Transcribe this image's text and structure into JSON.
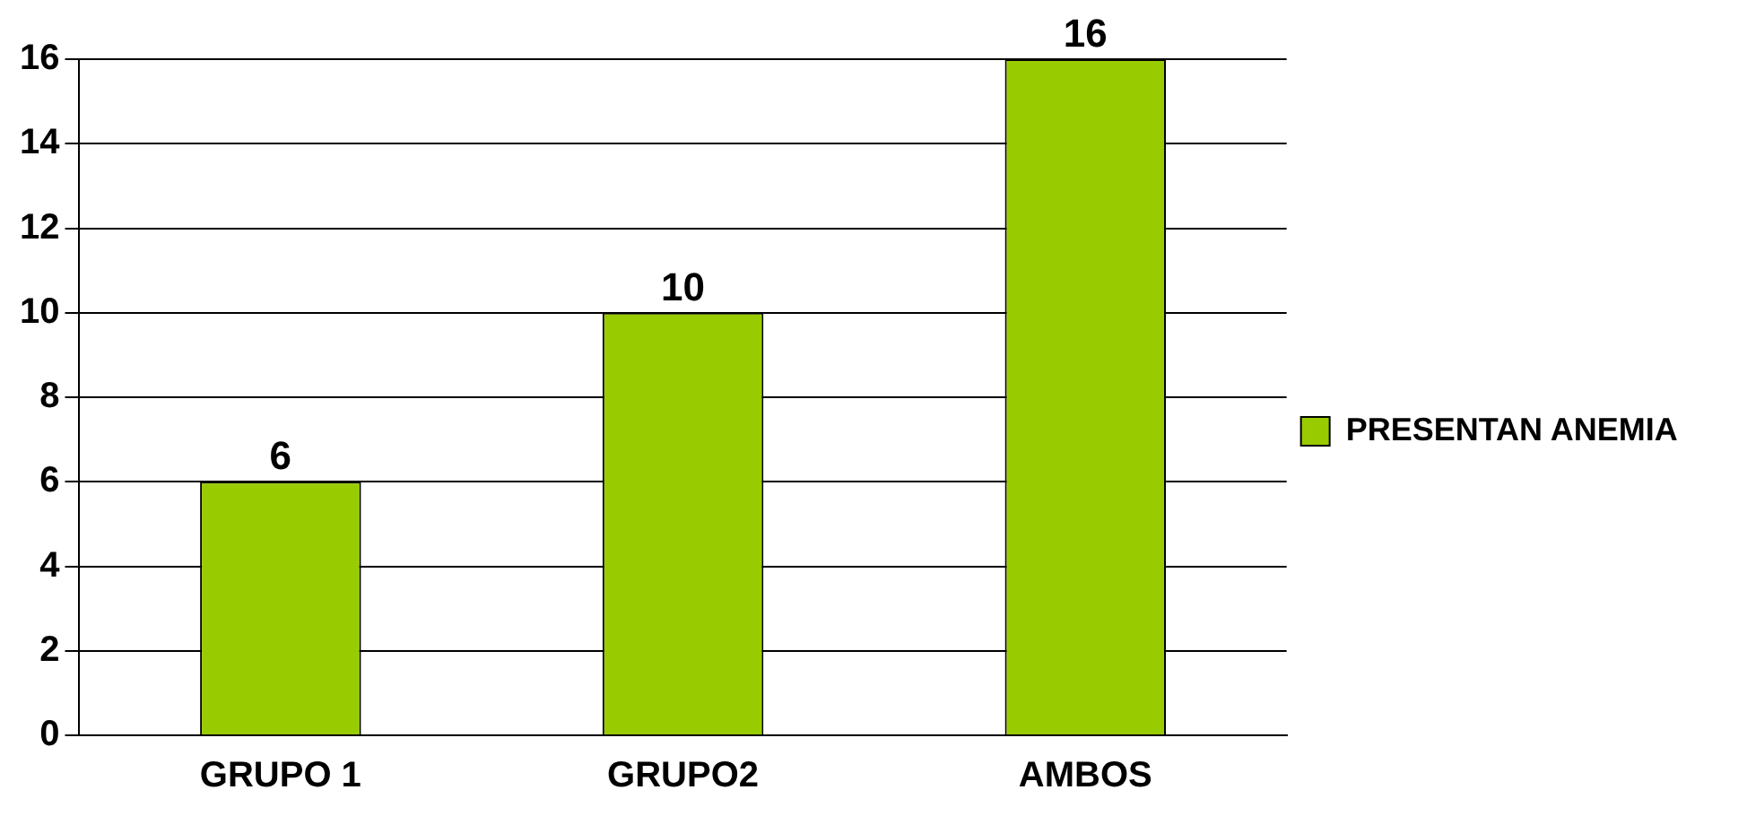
{
  "chart_data": {
    "type": "bar",
    "categories": [
      "GRUPO 1",
      "GRUPO2",
      "AMBOS"
    ],
    "series": [
      {
        "name": "PRESENTAN ANEMIA",
        "color": "#99cc00",
        "values": [
          6,
          10,
          16
        ]
      }
    ],
    "ylim": [
      0,
      16
    ],
    "yticks": [
      0,
      2,
      4,
      6,
      8,
      10,
      12,
      14,
      16
    ],
    "grid": "y",
    "legend": "right",
    "data_labels": true
  }
}
